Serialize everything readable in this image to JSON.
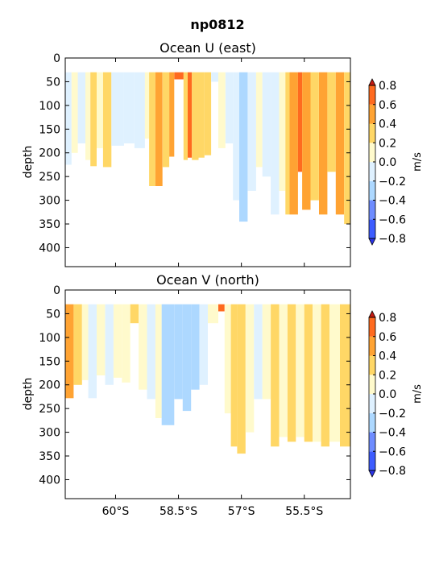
{
  "figure": {
    "suptitle": "np0812"
  },
  "colors": {
    "levels": [
      {
        "range": [
          -0.8,
          -0.6
        ],
        "color": "#3d5cff"
      },
      {
        "range": [
          -0.6,
          -0.4
        ],
        "color": "#6e8cff"
      },
      {
        "range": [
          -0.4,
          -0.2
        ],
        "color": "#add8ff"
      },
      {
        "range": [
          -0.2,
          0.0
        ],
        "color": "#dff1ff"
      },
      {
        "range": [
          0.0,
          0.2
        ],
        "color": "#fffacc"
      },
      {
        "range": [
          0.2,
          0.4
        ],
        "color": "#ffd766"
      },
      {
        "range": [
          0.4,
          0.6
        ],
        "color": "#ffa333"
      },
      {
        "range": [
          0.6,
          0.8
        ],
        "color": "#ff6a1f"
      }
    ],
    "under": "#2b33e6",
    "over": "#c41a12"
  },
  "chart_data": [
    {
      "type": "heatmap",
      "title": "Ocean U (east)",
      "ylabel": "depth",
      "yticks": [
        "0",
        "50",
        "100",
        "150",
        "200",
        "250",
        "300",
        "350",
        "400"
      ],
      "ylim": [
        440,
        0
      ],
      "xlim": [
        -61.2,
        -54.4
      ],
      "xunits": "degrees latitude (negative = S)",
      "colorbar": {
        "label": "m/s",
        "ticks": [
          "0.8",
          "0.6",
          "0.4",
          "0.2",
          "0.0",
          "−0.2",
          "−0.4",
          "−0.6",
          "−0.8"
        ]
      },
      "columns": [
        {
          "x0": -61.2,
          "x1": -61.05,
          "top": 30,
          "bottom": 225,
          "v": -0.1
        },
        {
          "x0": -61.05,
          "x1": -60.9,
          "top": 30,
          "bottom": 200,
          "v": 0.1
        },
        {
          "x0": -60.9,
          "x1": -60.72,
          "top": 30,
          "bottom": 180,
          "v": -0.05
        },
        {
          "x0": -60.72,
          "x1": -60.6,
          "top": 30,
          "bottom": 215,
          "v": 0.12
        },
        {
          "x0": -60.6,
          "x1": -60.45,
          "top": 30,
          "bottom": 228,
          "v": 0.35
        },
        {
          "x0": -60.45,
          "x1": -60.3,
          "top": 30,
          "bottom": 190,
          "v": 0.15
        },
        {
          "x0": -60.3,
          "x1": -60.1,
          "top": 30,
          "bottom": 230,
          "v": 0.3
        },
        {
          "x0": -60.1,
          "x1": -59.8,
          "top": 30,
          "bottom": 185,
          "v": -0.12
        },
        {
          "x0": -59.8,
          "x1": -59.55,
          "top": 30,
          "bottom": 180,
          "v": -0.08
        },
        {
          "x0": -59.55,
          "x1": -59.3,
          "top": 30,
          "bottom": 190,
          "v": -0.15
        },
        {
          "x0": -59.3,
          "x1": -59.2,
          "top": 30,
          "bottom": 170,
          "v": 0.05
        },
        {
          "x0": -59.2,
          "x1": -59.05,
          "top": 30,
          "bottom": 270,
          "v": 0.3
        },
        {
          "x0": -59.05,
          "x1": -58.88,
          "top": 30,
          "bottom": 270,
          "v": 0.5
        },
        {
          "x0": -58.88,
          "x1": -58.72,
          "top": 30,
          "bottom": 230,
          "v": 0.35
        },
        {
          "x0": -58.72,
          "x1": -58.6,
          "top": 30,
          "bottom": 208,
          "v": 0.55
        },
        {
          "x0": -58.6,
          "x1": -58.38,
          "top": 30,
          "bottom": 45,
          "v": 0.75
        },
        {
          "x0": -58.38,
          "x1": -58.28,
          "top": 30,
          "bottom": 215,
          "v": 0.3
        },
        {
          "x0": -58.28,
          "x1": -58.18,
          "top": 30,
          "bottom": 210,
          "v": 0.72
        },
        {
          "x0": -58.18,
          "x1": -58.02,
          "top": 30,
          "bottom": 215,
          "v": 0.35
        },
        {
          "x0": -58.02,
          "x1": -57.88,
          "top": 30,
          "bottom": 210,
          "v": 0.25
        },
        {
          "x0": -57.88,
          "x1": -57.72,
          "top": 30,
          "bottom": 205,
          "v": 0.3
        },
        {
          "x0": -57.72,
          "x1": -57.55,
          "top": 30,
          "bottom": 50,
          "v": -0.1
        },
        {
          "x0": -57.55,
          "x1": -57.38,
          "top": 30,
          "bottom": 190,
          "v": 0.15
        },
        {
          "x0": -57.38,
          "x1": -57.2,
          "top": 30,
          "bottom": 180,
          "v": -0.12
        },
        {
          "x0": -57.2,
          "x1": -57.05,
          "top": 30,
          "bottom": 300,
          "v": -0.15
        },
        {
          "x0": -57.05,
          "x1": -56.85,
          "top": 30,
          "bottom": 345,
          "v": -0.3
        },
        {
          "x0": -56.85,
          "x1": -56.65,
          "top": 30,
          "bottom": 280,
          "v": -0.18
        },
        {
          "x0": -56.65,
          "x1": -56.5,
          "top": 30,
          "bottom": 230,
          "v": 0.1
        },
        {
          "x0": -56.5,
          "x1": -56.3,
          "top": 30,
          "bottom": 250,
          "v": -0.1
        },
        {
          "x0": -56.3,
          "x1": -56.1,
          "top": 30,
          "bottom": 330,
          "v": -0.08
        },
        {
          "x0": -56.1,
          "x1": -55.95,
          "top": 30,
          "bottom": 280,
          "v": 0.05
        },
        {
          "x0": -55.95,
          "x1": -55.85,
          "top": 30,
          "bottom": 330,
          "v": 0.3
        },
        {
          "x0": -55.85,
          "x1": -55.65,
          "top": 30,
          "bottom": 330,
          "v": 0.5
        },
        {
          "x0": -55.65,
          "x1": -55.55,
          "top": 30,
          "bottom": 240,
          "v": 0.72
        },
        {
          "x0": -55.55,
          "x1": -55.35,
          "top": 30,
          "bottom": 320,
          "v": 0.5
        },
        {
          "x0": -55.35,
          "x1": -55.15,
          "top": 30,
          "bottom": 300,
          "v": 0.25
        },
        {
          "x0": -55.15,
          "x1": -54.95,
          "top": 30,
          "bottom": 330,
          "v": 0.5
        },
        {
          "x0": -54.95,
          "x1": -54.75,
          "top": 30,
          "bottom": 240,
          "v": 0.3
        },
        {
          "x0": -54.75,
          "x1": -54.55,
          "top": 30,
          "bottom": 330,
          "v": 0.55
        },
        {
          "x0": -54.55,
          "x1": -54.4,
          "top": 30,
          "bottom": 350,
          "v": 0.3
        }
      ]
    },
    {
      "type": "heatmap",
      "title": "Ocean V (north)",
      "ylabel": "depth",
      "yticks": [
        "0",
        "50",
        "100",
        "150",
        "200",
        "250",
        "300",
        "350",
        "400"
      ],
      "ylim": [
        440,
        0
      ],
      "xlim": [
        -61.2,
        -54.4
      ],
      "xunits": "degrees latitude (negative = S)",
      "xticks": [
        {
          "value": -60.0,
          "label": "60°S"
        },
        {
          "value": -58.5,
          "label": "58.5°S"
        },
        {
          "value": -57.0,
          "label": "57°S"
        },
        {
          "value": -55.5,
          "label": "55.5°S"
        }
      ],
      "colorbar": {
        "label": "m/s",
        "ticks": [
          "0.8",
          "0.6",
          "0.4",
          "0.2",
          "0.0",
          "−0.2",
          "−0.4",
          "−0.6",
          "−0.8"
        ]
      },
      "columns": [
        {
          "x0": -61.2,
          "x1": -61.0,
          "top": 30,
          "bottom": 228,
          "v": 0.45
        },
        {
          "x0": -61.0,
          "x1": -60.8,
          "top": 30,
          "bottom": 200,
          "v": 0.3
        },
        {
          "x0": -60.8,
          "x1": -60.65,
          "top": 30,
          "bottom": 190,
          "v": 0.05
        },
        {
          "x0": -60.65,
          "x1": -60.45,
          "top": 30,
          "bottom": 228,
          "v": -0.15
        },
        {
          "x0": -60.45,
          "x1": -60.25,
          "top": 30,
          "bottom": 180,
          "v": 0.1
        },
        {
          "x0": -60.25,
          "x1": -60.05,
          "top": 30,
          "bottom": 200,
          "v": -0.1
        },
        {
          "x0": -60.05,
          "x1": -59.85,
          "top": 30,
          "bottom": 185,
          "v": 0.15
        },
        {
          "x0": -59.85,
          "x1": -59.65,
          "top": 30,
          "bottom": 195,
          "v": 0.08
        },
        {
          "x0": -59.65,
          "x1": -59.45,
          "top": 30,
          "bottom": 70,
          "v": 0.25
        },
        {
          "x0": -59.45,
          "x1": -59.25,
          "top": 30,
          "bottom": 210,
          "v": 0.1
        },
        {
          "x0": -59.25,
          "x1": -59.05,
          "top": 30,
          "bottom": 230,
          "v": -0.1
        },
        {
          "x0": -59.05,
          "x1": -58.9,
          "top": 30,
          "bottom": 270,
          "v": 0.1
        },
        {
          "x0": -58.9,
          "x1": -58.6,
          "top": 30,
          "bottom": 285,
          "v": -0.3
        },
        {
          "x0": -58.6,
          "x1": -58.4,
          "top": 30,
          "bottom": 230,
          "v": -0.3
        },
        {
          "x0": -58.4,
          "x1": -58.2,
          "top": 30,
          "bottom": 255,
          "v": -0.3
        },
        {
          "x0": -58.2,
          "x1": -58.0,
          "top": 30,
          "bottom": 210,
          "v": -0.3
        },
        {
          "x0": -58.0,
          "x1": -57.8,
          "top": 30,
          "bottom": 200,
          "v": -0.12
        },
        {
          "x0": -57.8,
          "x1": -57.55,
          "top": 30,
          "bottom": 70,
          "v": 0.08
        },
        {
          "x0": -57.55,
          "x1": -57.4,
          "top": 30,
          "bottom": 45,
          "v": 0.75
        },
        {
          "x0": -57.4,
          "x1": -57.25,
          "top": 30,
          "bottom": 260,
          "v": 0.1
        },
        {
          "x0": -57.25,
          "x1": -57.1,
          "top": 30,
          "bottom": 330,
          "v": 0.3
        },
        {
          "x0": -57.1,
          "x1": -56.9,
          "top": 30,
          "bottom": 345,
          "v": 0.38
        },
        {
          "x0": -56.9,
          "x1": -56.7,
          "top": 30,
          "bottom": 300,
          "v": 0.1
        },
        {
          "x0": -56.7,
          "x1": -56.5,
          "top": 30,
          "bottom": 230,
          "v": -0.1
        },
        {
          "x0": -56.5,
          "x1": -56.3,
          "top": 30,
          "bottom": 230,
          "v": 0.1
        },
        {
          "x0": -56.3,
          "x1": -56.1,
          "top": 30,
          "bottom": 330,
          "v": 0.3
        },
        {
          "x0": -56.1,
          "x1": -55.9,
          "top": 30,
          "bottom": 310,
          "v": 0.15
        },
        {
          "x0": -55.9,
          "x1": -55.7,
          "top": 30,
          "bottom": 320,
          "v": 0.35
        },
        {
          "x0": -55.7,
          "x1": -55.5,
          "top": 30,
          "bottom": 310,
          "v": 0.1
        },
        {
          "x0": -55.5,
          "x1": -55.3,
          "top": 30,
          "bottom": 320,
          "v": 0.35
        },
        {
          "x0": -55.3,
          "x1": -55.1,
          "top": 30,
          "bottom": 320,
          "v": 0.1
        },
        {
          "x0": -55.1,
          "x1": -54.9,
          "top": 30,
          "bottom": 330,
          "v": 0.35
        },
        {
          "x0": -54.9,
          "x1": -54.65,
          "top": 30,
          "bottom": 320,
          "v": 0.15
        },
        {
          "x0": -54.65,
          "x1": -54.4,
          "top": 30,
          "bottom": 330,
          "v": 0.3
        }
      ]
    }
  ]
}
